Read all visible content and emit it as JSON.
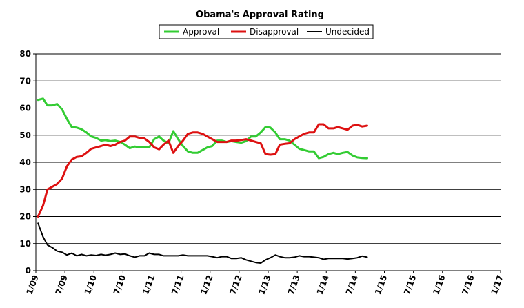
{
  "chart_data": {
    "type": "line",
    "title": "Obama's Approval Rating",
    "xlabel": "",
    "ylabel": "",
    "ylim": [
      0,
      80
    ],
    "yticks": [
      0,
      10,
      20,
      30,
      40,
      50,
      60,
      70,
      80
    ],
    "xlim": [
      "2009-01-01",
      "2017-01-01"
    ],
    "xtick_labels": [
      "1/09",
      "7/09",
      "1/10",
      "7/10",
      "1/11",
      "7/11",
      "1/12",
      "7/12",
      "1/13",
      "7/13",
      "1/14",
      "7/14",
      "1/15",
      "7/15",
      "1/16",
      "7/16",
      "1/17"
    ],
    "grid": "horizontal",
    "legend": "top",
    "series": [
      {
        "name": "Approval",
        "color": "#33cc33",
        "points": [
          [
            "2009-01-15",
            63
          ],
          [
            "2009-02-15",
            63.5
          ],
          [
            "2009-03-15",
            61
          ],
          [
            "2009-04-15",
            61
          ],
          [
            "2009-05-15",
            61.5
          ],
          [
            "2009-06-15",
            59.5
          ],
          [
            "2009-07-15",
            56
          ],
          [
            "2009-08-15",
            53
          ],
          [
            "2009-09-15",
            52.8
          ],
          [
            "2009-10-15",
            52.2
          ],
          [
            "2009-11-15",
            51
          ],
          [
            "2009-12-15",
            49.5
          ],
          [
            "2010-01-15",
            49
          ],
          [
            "2010-02-15",
            48
          ],
          [
            "2010-03-15",
            48.2
          ],
          [
            "2010-04-15",
            47.8
          ],
          [
            "2010-05-15",
            48
          ],
          [
            "2010-06-15",
            47.5
          ],
          [
            "2010-07-15",
            46.5
          ],
          [
            "2010-08-15",
            45.2
          ],
          [
            "2010-09-15",
            45.8
          ],
          [
            "2010-10-15",
            45.5
          ],
          [
            "2010-11-15",
            45.5
          ],
          [
            "2010-12-15",
            45.5
          ],
          [
            "2011-01-15",
            48.5
          ],
          [
            "2011-02-15",
            49.5
          ],
          [
            "2011-03-15",
            48
          ],
          [
            "2011-04-15",
            47
          ],
          [
            "2011-05-15",
            51.5
          ],
          [
            "2011-06-15",
            48.5
          ],
          [
            "2011-07-15",
            46
          ],
          [
            "2011-08-15",
            44
          ],
          [
            "2011-09-15",
            43.5
          ],
          [
            "2011-10-15",
            43.5
          ],
          [
            "2011-11-15",
            44.5
          ],
          [
            "2011-12-15",
            45.5
          ],
          [
            "2012-01-15",
            46
          ],
          [
            "2012-02-15",
            48
          ],
          [
            "2012-03-15",
            48
          ],
          [
            "2012-04-15",
            47.5
          ],
          [
            "2012-05-15",
            47.8
          ],
          [
            "2012-06-15",
            47.5
          ],
          [
            "2012-07-15",
            47.2
          ],
          [
            "2012-08-15",
            47.8
          ],
          [
            "2012-09-15",
            49.5
          ],
          [
            "2012-10-15",
            49.5
          ],
          [
            "2012-11-15",
            51
          ],
          [
            "2012-12-15",
            53
          ],
          [
            "2013-01-15",
            52.8
          ],
          [
            "2013-02-15",
            51
          ],
          [
            "2013-03-15",
            48.5
          ],
          [
            "2013-04-15",
            48.5
          ],
          [
            "2013-05-15",
            48
          ],
          [
            "2013-06-15",
            46.5
          ],
          [
            "2013-07-15",
            45
          ],
          [
            "2013-08-15",
            44.5
          ],
          [
            "2013-09-15",
            44
          ],
          [
            "2013-10-15",
            44
          ],
          [
            "2013-11-15",
            41.5
          ],
          [
            "2013-12-15",
            42
          ],
          [
            "2014-01-15",
            43
          ],
          [
            "2014-02-15",
            43.5
          ],
          [
            "2014-03-15",
            43
          ],
          [
            "2014-04-15",
            43.5
          ],
          [
            "2014-05-15",
            43.8
          ],
          [
            "2014-06-15",
            42.5
          ],
          [
            "2014-07-15",
            41.8
          ],
          [
            "2014-08-15",
            41.6
          ],
          [
            "2014-09-15",
            41.5
          ]
        ]
      },
      {
        "name": "Disapproval",
        "color": "#dd1111",
        "points": [
          [
            "2009-01-15",
            20
          ],
          [
            "2009-02-15",
            24
          ],
          [
            "2009-03-15",
            30
          ],
          [
            "2009-04-15",
            31
          ],
          [
            "2009-05-15",
            32
          ],
          [
            "2009-06-15",
            34
          ],
          [
            "2009-07-15",
            38.5
          ],
          [
            "2009-08-15",
            41
          ],
          [
            "2009-09-15",
            42
          ],
          [
            "2009-10-15",
            42.2
          ],
          [
            "2009-11-15",
            43.5
          ],
          [
            "2009-12-15",
            45
          ],
          [
            "2010-01-15",
            45.5
          ],
          [
            "2010-02-15",
            46
          ],
          [
            "2010-03-15",
            46.5
          ],
          [
            "2010-04-15",
            46
          ],
          [
            "2010-05-15",
            46.5
          ],
          [
            "2010-06-15",
            47.5
          ],
          [
            "2010-07-15",
            48
          ],
          [
            "2010-08-15",
            49.5
          ],
          [
            "2010-09-15",
            49.5
          ],
          [
            "2010-10-15",
            49
          ],
          [
            "2010-11-15",
            48.8
          ],
          [
            "2010-12-15",
            47.5
          ],
          [
            "2011-01-15",
            45.5
          ],
          [
            "2011-02-15",
            44.8
          ],
          [
            "2011-03-15",
            46.5
          ],
          [
            "2011-04-15",
            48
          ],
          [
            "2011-05-15",
            43.5
          ],
          [
            "2011-06-15",
            46
          ],
          [
            "2011-07-15",
            48
          ],
          [
            "2011-08-15",
            50.5
          ],
          [
            "2011-09-15",
            51
          ],
          [
            "2011-10-15",
            51
          ],
          [
            "2011-11-15",
            50.5
          ],
          [
            "2011-12-15",
            49.5
          ],
          [
            "2012-01-15",
            48.5
          ],
          [
            "2012-02-15",
            47.5
          ],
          [
            "2012-03-15",
            47.5
          ],
          [
            "2012-04-15",
            47.5
          ],
          [
            "2012-05-15",
            48
          ],
          [
            "2012-06-15",
            48
          ],
          [
            "2012-07-15",
            48.2
          ],
          [
            "2012-08-15",
            48.5
          ],
          [
            "2012-09-15",
            48
          ],
          [
            "2012-10-15",
            47.5
          ],
          [
            "2012-11-15",
            47
          ],
          [
            "2012-12-15",
            43
          ],
          [
            "2013-01-15",
            42.8
          ],
          [
            "2013-02-15",
            43
          ],
          [
            "2013-03-15",
            46.5
          ],
          [
            "2013-04-15",
            46.8
          ],
          [
            "2013-05-15",
            47
          ],
          [
            "2013-06-15",
            48.5
          ],
          [
            "2013-07-15",
            49.5
          ],
          [
            "2013-08-15",
            50.5
          ],
          [
            "2013-09-15",
            51
          ],
          [
            "2013-10-15",
            51
          ],
          [
            "2013-11-15",
            54
          ],
          [
            "2013-12-15",
            54
          ],
          [
            "2014-01-15",
            52.5
          ],
          [
            "2014-02-15",
            52.5
          ],
          [
            "2014-03-15",
            53
          ],
          [
            "2014-04-15",
            52.5
          ],
          [
            "2014-05-15",
            52
          ],
          [
            "2014-06-15",
            53.5
          ],
          [
            "2014-07-15",
            53.8
          ],
          [
            "2014-08-15",
            53.2
          ],
          [
            "2014-09-15",
            53.5
          ]
        ]
      },
      {
        "name": "Undecided",
        "color": "#000000",
        "points": [
          [
            "2009-01-15",
            17.5
          ],
          [
            "2009-02-15",
            12.5
          ],
          [
            "2009-03-15",
            9.5
          ],
          [
            "2009-04-15",
            8.5
          ],
          [
            "2009-05-15",
            7.2
          ],
          [
            "2009-06-15",
            6.8
          ],
          [
            "2009-07-15",
            5.8
          ],
          [
            "2009-08-15",
            6.5
          ],
          [
            "2009-09-15",
            5.5
          ],
          [
            "2009-10-15",
            6
          ],
          [
            "2009-11-15",
            5.5
          ],
          [
            "2009-12-15",
            5.8
          ],
          [
            "2010-01-15",
            5.6
          ],
          [
            "2010-02-15",
            6
          ],
          [
            "2010-03-15",
            5.7
          ],
          [
            "2010-04-15",
            6
          ],
          [
            "2010-05-15",
            6.5
          ],
          [
            "2010-06-15",
            6
          ],
          [
            "2010-07-15",
            6.2
          ],
          [
            "2010-08-15",
            5.5
          ],
          [
            "2010-09-15",
            5
          ],
          [
            "2010-10-15",
            5.5
          ],
          [
            "2010-11-15",
            5.5
          ],
          [
            "2010-12-15",
            6.5
          ],
          [
            "2011-01-15",
            6
          ],
          [
            "2011-02-15",
            6
          ],
          [
            "2011-03-15",
            5.5
          ],
          [
            "2011-04-15",
            5.5
          ],
          [
            "2011-05-15",
            5.5
          ],
          [
            "2011-06-15",
            5.5
          ],
          [
            "2011-07-15",
            5.8
          ],
          [
            "2011-08-15",
            5.5
          ],
          [
            "2011-09-15",
            5.5
          ],
          [
            "2011-10-15",
            5.5
          ],
          [
            "2011-11-15",
            5.5
          ],
          [
            "2011-12-15",
            5.5
          ],
          [
            "2012-01-15",
            5.2
          ],
          [
            "2012-02-15",
            4.8
          ],
          [
            "2012-03-15",
            5.2
          ],
          [
            "2012-04-15",
            5.2
          ],
          [
            "2012-05-15",
            4.5
          ],
          [
            "2012-06-15",
            4.5
          ],
          [
            "2012-07-15",
            4.8
          ],
          [
            "2012-08-15",
            4
          ],
          [
            "2012-09-15",
            3.5
          ],
          [
            "2012-10-15",
            3
          ],
          [
            "2012-11-15",
            2.8
          ],
          [
            "2012-12-15",
            4
          ],
          [
            "2013-01-15",
            4.8
          ],
          [
            "2013-02-15",
            5.8
          ],
          [
            "2013-03-15",
            5.2
          ],
          [
            "2013-04-15",
            4.8
          ],
          [
            "2013-05-15",
            4.8
          ],
          [
            "2013-06-15",
            5
          ],
          [
            "2013-07-15",
            5.5
          ],
          [
            "2013-08-15",
            5.2
          ],
          [
            "2013-09-15",
            5.2
          ],
          [
            "2013-10-15",
            5
          ],
          [
            "2013-11-15",
            4.8
          ],
          [
            "2013-12-15",
            4.2
          ],
          [
            "2014-01-15",
            4.5
          ],
          [
            "2014-02-15",
            4.5
          ],
          [
            "2014-03-15",
            4.5
          ],
          [
            "2014-04-15",
            4.5
          ],
          [
            "2014-05-15",
            4.3
          ],
          [
            "2014-06-15",
            4.5
          ],
          [
            "2014-07-15",
            4.8
          ],
          [
            "2014-08-15",
            5.4
          ],
          [
            "2014-09-15",
            5
          ]
        ]
      }
    ]
  }
}
